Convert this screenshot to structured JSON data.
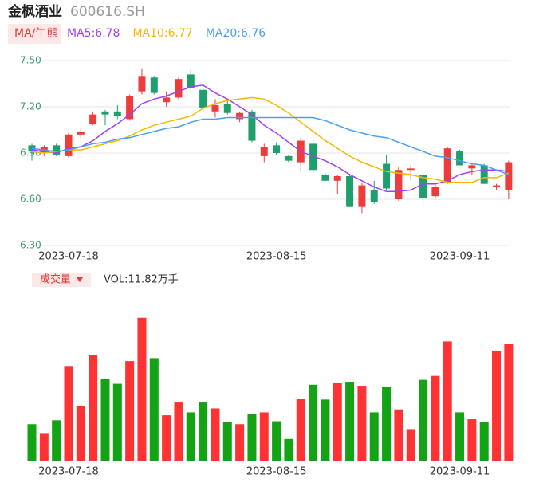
{
  "header": {
    "name": "金枫酒业",
    "code": "600616.SH",
    "ma_button": "MA/牛熊"
  },
  "chart_data": [
    {
      "type": "candlestick",
      "categories": [
        null,
        null,
        null,
        "2023-07-18",
        null,
        null,
        null,
        null,
        null,
        null,
        null,
        null,
        null,
        null,
        null,
        null,
        null,
        null,
        null,
        null,
        "2023-08-15",
        null,
        null,
        null,
        null,
        null,
        null,
        null,
        null,
        null,
        null,
        null,
        null,
        null,
        null,
        "2023-09-11",
        null,
        null,
        null,
        null
      ],
      "open": [
        6.95,
        6.9,
        6.95,
        6.88,
        7.02,
        7.09,
        7.17,
        7.17,
        7.12,
        7.3,
        7.39,
        7.23,
        7.26,
        7.41,
        7.31,
        7.17,
        7.22,
        7.12,
        7.17,
        6.88,
        6.95,
        6.88,
        6.84,
        6.96,
        6.76,
        6.72,
        6.75,
        6.55,
        6.66,
        6.83,
        6.6,
        6.79,
        6.76,
        6.62,
        6.71,
        6.91,
        6.8,
        6.82,
        6.68,
        6.66
      ],
      "high": [
        6.96,
        6.95,
        6.96,
        7.03,
        7.06,
        7.17,
        7.18,
        7.21,
        7.28,
        7.45,
        7.4,
        7.3,
        7.39,
        7.44,
        7.32,
        7.25,
        7.24,
        7.17,
        7.18,
        6.96,
        6.97,
        6.89,
        7.0,
        7.0,
        6.77,
        6.76,
        6.76,
        6.71,
        6.72,
        6.89,
        6.81,
        6.82,
        6.77,
        6.71,
        6.94,
        6.92,
        6.83,
        6.83,
        6.7,
        6.85
      ],
      "low": [
        6.85,
        6.88,
        6.88,
        6.87,
        6.99,
        7.08,
        7.08,
        7.12,
        7.11,
        7.28,
        7.28,
        7.2,
        7.25,
        7.3,
        7.17,
        7.13,
        7.15,
        7.1,
        6.97,
        6.84,
        6.89,
        6.84,
        6.78,
        6.78,
        6.72,
        6.63,
        6.55,
        6.51,
        6.57,
        6.66,
        6.59,
        6.72,
        6.56,
        6.61,
        6.7,
        6.82,
        6.76,
        6.7,
        6.66,
        6.6
      ],
      "close": [
        6.91,
        6.94,
        6.89,
        7.02,
        7.04,
        7.15,
        7.15,
        7.14,
        7.27,
        7.4,
        7.29,
        7.26,
        7.38,
        7.32,
        7.19,
        7.21,
        7.16,
        7.16,
        6.98,
        6.94,
        6.9,
        6.85,
        6.98,
        6.79,
        6.72,
        6.75,
        6.55,
        6.69,
        6.58,
        6.67,
        6.79,
        6.8,
        6.61,
        6.68,
        6.93,
        6.82,
        6.82,
        6.7,
        6.69,
        6.84
      ],
      "up_color": "#ee3b3b",
      "down_color": "#1f9f6e",
      "series": [
        {
          "name": "MA5:6.78",
          "color": "#a040f0",
          "values": [
            6.92,
            6.91,
            6.9,
            6.93,
            6.94,
            6.98,
            7.04,
            7.09,
            7.15,
            7.22,
            7.25,
            7.27,
            7.3,
            7.33,
            7.34,
            7.29,
            7.25,
            7.2,
            7.15,
            7.08,
            7.03,
            6.97,
            6.91,
            6.88,
            6.85,
            6.81,
            6.76,
            6.72,
            6.68,
            6.65,
            6.65,
            6.66,
            6.7,
            6.7,
            6.72,
            6.76,
            6.78,
            6.79,
            6.79,
            6.78
          ]
        },
        {
          "name": "MA10:6.77",
          "color": "#f5b800",
          "values": [
            6.91,
            6.9,
            6.91,
            6.92,
            6.92,
            6.94,
            6.96,
            6.98,
            7.01,
            7.05,
            7.08,
            7.1,
            7.12,
            7.14,
            7.19,
            7.22,
            7.24,
            7.25,
            7.26,
            7.25,
            7.21,
            7.16,
            7.1,
            7.04,
            6.98,
            6.93,
            6.88,
            6.84,
            6.81,
            6.78,
            6.77,
            6.76,
            6.74,
            6.73,
            6.71,
            6.71,
            6.71,
            6.74,
            6.74,
            6.77
          ]
        },
        {
          "name": "MA20:6.76",
          "color": "#4a9ff5",
          "values": [
            6.93,
            6.92,
            6.91,
            6.92,
            6.94,
            6.96,
            6.97,
            6.99,
            7.0,
            7.02,
            7.04,
            7.06,
            7.07,
            7.1,
            7.12,
            7.12,
            7.13,
            7.13,
            7.13,
            7.13,
            7.13,
            7.13,
            7.13,
            7.13,
            7.11,
            7.08,
            7.05,
            7.03,
            7.01,
            7.0,
            6.97,
            6.94,
            6.91,
            6.88,
            6.87,
            6.85,
            6.83,
            6.82,
            6.79,
            6.76
          ]
        }
      ],
      "ylim": [
        6.3,
        7.5
      ],
      "yticks": [
        {
          "value": 7.5,
          "label": "7.50"
        },
        {
          "value": 7.2,
          "label": "7.20"
        },
        {
          "value": 6.9,
          "label": "6.90"
        },
        {
          "value": 6.6,
          "label": "6.60"
        },
        {
          "value": 6.3,
          "label": "6.30"
        }
      ],
      "grid": true
    },
    {
      "type": "bar",
      "title": "成交量",
      "label": "VOL:11.82万手",
      "categories": [
        null,
        null,
        null,
        "2023-07-18",
        null,
        null,
        null,
        null,
        null,
        null,
        null,
        null,
        null,
        null,
        null,
        null,
        null,
        null,
        null,
        null,
        "2023-08-15",
        null,
        null,
        null,
        null,
        null,
        null,
        null,
        null,
        null,
        null,
        null,
        null,
        null,
        null,
        "2023-09-11",
        null,
        null,
        null,
        null
      ],
      "values": [
        3.7,
        2.8,
        4.1,
        9.6,
        5.5,
        10.7,
        8.3,
        7.8,
        10.1,
        14.5,
        10.4,
        4.6,
        5.9,
        4.9,
        5.9,
        5.3,
        3.9,
        3.7,
        4.7,
        4.9,
        4.0,
        2.2,
        6.3,
        7.7,
        6.2,
        7.9,
        8.0,
        7.6,
        4.9,
        7.5,
        5.2,
        3.2,
        8.2,
        8.6,
        12.1,
        4.9,
        4.2,
        3.9,
        11.1,
        11.82
      ],
      "up_color": "#ff3333",
      "down_color": "#14a314",
      "ylim": [
        0,
        14.8
      ]
    }
  ]
}
